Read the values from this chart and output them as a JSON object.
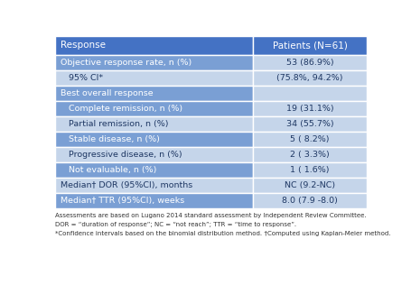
{
  "header": [
    "Response",
    "Patients (N=61)"
  ],
  "rows": [
    {
      "label": "Objective response rate, n (%)",
      "value": "53 (86.9%)",
      "type": "dark"
    },
    {
      "label": "   95% CI*",
      "value": "(75.8%, 94.2%)",
      "type": "light"
    },
    {
      "label": "Best overall response",
      "value": "",
      "type": "section"
    },
    {
      "label": "   Complete remission, n (%)",
      "value": "19 (31.1%)",
      "type": "dark"
    },
    {
      "label": "   Partial remission, n (%)",
      "value": "34 (55.7%)",
      "type": "light"
    },
    {
      "label": "   Stable disease, n (%)",
      "value": "5 ( 8.2%)",
      "type": "dark"
    },
    {
      "label": "   Progressive disease, n (%)",
      "value": "2 ( 3.3%)",
      "type": "light"
    },
    {
      "label": "   Not evaluable, n (%)",
      "value": "1 ( 1.6%)",
      "type": "dark"
    },
    {
      "label": "Median† DOR (95%CI), months",
      "value": "NC (9.2-NC)",
      "type": "light"
    },
    {
      "label": "Median† TTR (95%CI), weeks",
      "value": "8.0 (7.9 -8.0)",
      "type": "dark"
    }
  ],
  "footnotes": [
    "Assessments are based on Lugano 2014 standard assessment by Independent Review Committee.",
    "DOR = “duration of response”; NC = “not reach”; TTR = “time to response”.",
    "*Confidence intervals based on the binomial distribution method. †Computed using Kaplan-Meier method."
  ],
  "header_bg": "#4472c4",
  "header_fg": "#ffffff",
  "dark_bg": "#7a9fd4",
  "dark_fg": "#ffffff",
  "light_bg": "#c5d5ea",
  "light_fg": "#1f3864",
  "section_bg": "#7a9fd4",
  "section_fg": "#ffffff",
  "section_right_bg": "#c5d5ea",
  "border_color": "#ffffff",
  "footnote_color": "#333333",
  "col_split": 0.635,
  "figw": 4.56,
  "figh": 3.16,
  "dpi": 100
}
